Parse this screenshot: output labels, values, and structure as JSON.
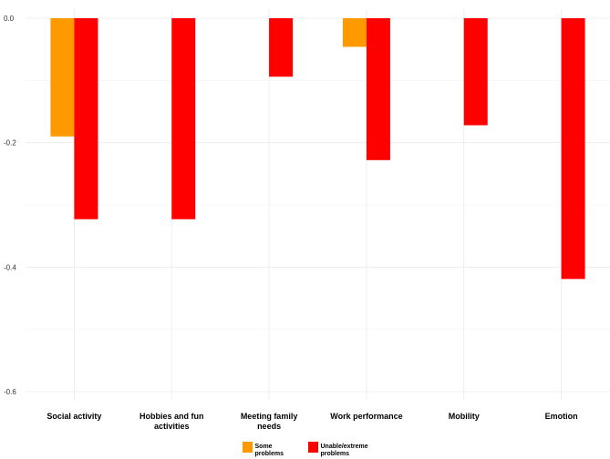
{
  "chart_data": {
    "type": "bar",
    "categories": [
      "Social activity",
      "Hobbies and fun activities",
      "Meeting family needs",
      "Work performance",
      "Mobility",
      "Emotion"
    ],
    "series": [
      {
        "name": "Some problems",
        "color": "#FF9900",
        "values": [
          -0.19,
          null,
          null,
          -0.046,
          null,
          null
        ]
      },
      {
        "name": "Unable/extreme problems",
        "color": "#FF0000",
        "values": [
          -0.323,
          -0.323,
          -0.094,
          -0.228,
          -0.172,
          -0.419
        ]
      }
    ],
    "yticks": [
      0.0,
      -0.2,
      -0.4,
      -0.6
    ],
    "ytick_labels": [
      "0.0",
      "-0.2",
      "-0.4",
      "-0.6"
    ],
    "ylim": [
      -0.6,
      0.0
    ],
    "xlabel": "",
    "ylabel": "",
    "grid": true,
    "legend_position": "bottom"
  }
}
